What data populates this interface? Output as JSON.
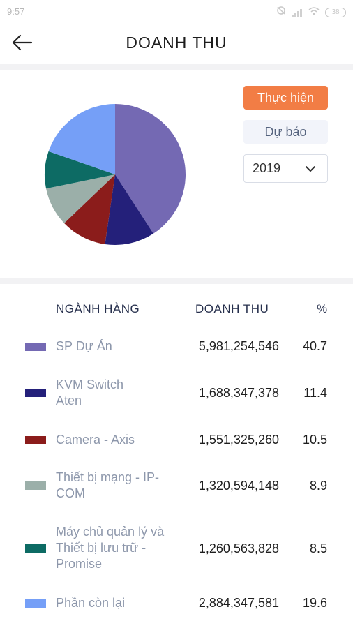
{
  "status_bar": {
    "time": "9:57",
    "battery": "38"
  },
  "header": {
    "title": "DOANH THU"
  },
  "controls": {
    "actual_label": "Thực hiện",
    "forecast_label": "Dự báo",
    "year": "2019"
  },
  "colors": {
    "accent": "#f27d45",
    "segments": [
      "#7469b3",
      "#24207a",
      "#8b1c1b",
      "#9bafa9",
      "#0d6b64",
      "#759ff7"
    ]
  },
  "table": {
    "headers": {
      "category": "NGÀNH HÀNG",
      "revenue": "DOANH THU",
      "percent": "%"
    },
    "rows": [
      {
        "name": "SP Dự Án",
        "revenue": "5,981,254,546",
        "percent": "40.7"
      },
      {
        "name": "KVM Switch Aten",
        "revenue": "1,688,347,378",
        "percent": "11.4"
      },
      {
        "name": "Camera - Axis",
        "revenue": "1,551,325,260",
        "percent": "10.5"
      },
      {
        "name": "Thiết bị mạng - IP-COM",
        "revenue": "1,320,594,148",
        "percent": "8.9"
      },
      {
        "name": "Máy chủ quản lý và Thiết bị lưu trữ - Promise",
        "revenue": "1,260,563,828",
        "percent": "8.5"
      },
      {
        "name": "Phần còn lại",
        "revenue": "2,884,347,581",
        "percent": "19.6"
      }
    ]
  },
  "chart_data": {
    "type": "pie",
    "categories": [
      "SP Dự Án",
      "KVM Switch Aten",
      "Camera - Axis",
      "Thiết bị mạng - IP-COM",
      "Máy chủ quản lý và Thiết bị lưu trữ - Promise",
      "Phần còn lại"
    ],
    "values": [
      40.7,
      11.4,
      10.5,
      8.9,
      8.5,
      19.6
    ]
  }
}
